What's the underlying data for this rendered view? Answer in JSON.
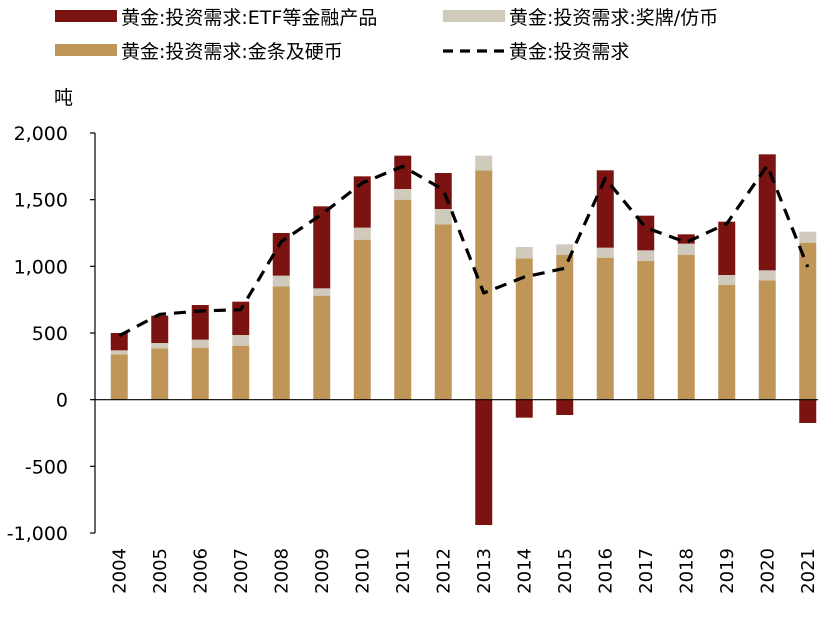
{
  "chart_data": {
    "type": "bar",
    "unit": "吨",
    "categories": [
      "2004",
      "2005",
      "2006",
      "2007",
      "2008",
      "2009",
      "2010",
      "2011",
      "2012",
      "2013",
      "2014",
      "2015",
      "2016",
      "2017",
      "2018",
      "2019",
      "2020",
      "2021"
    ],
    "ylim": [
      -1000,
      2000
    ],
    "yticks": [
      -1000,
      -500,
      0,
      500,
      1000,
      1500,
      2000
    ],
    "ytick_labels": [
      "-1,000",
      "-500",
      "0",
      "500",
      "1,000",
      "1,500",
      "2,000"
    ],
    "colors": {
      "etf": "#7B1410",
      "medals": "#CFCABC",
      "bars_coins": "#BF9558",
      "total_line": "#000000"
    },
    "series": [
      {
        "name": "黄金:投资需求:金条及硬币",
        "key": "bars_coins",
        "mark": "stacked-bar",
        "values": [
          340,
          385,
          390,
          405,
          850,
          780,
          1200,
          1500,
          1315,
          1720,
          1060,
          1085,
          1065,
          1040,
          1085,
          860,
          895,
          1175
        ]
      },
      {
        "name": "黄金:投资需求:奖牌/仿币",
        "key": "medals",
        "mark": "stacked-bar",
        "values": [
          30,
          40,
          60,
          80,
          80,
          55,
          90,
          80,
          115,
          110,
          85,
          80,
          75,
          80,
          85,
          75,
          75,
          85
        ]
      },
      {
        "name": "黄金:投资需求:ETF等金融产品",
        "key": "etf",
        "mark": "stacked-bar",
        "values": [
          130,
          205,
          260,
          250,
          320,
          615,
          385,
          250,
          270,
          -940,
          -135,
          -115,
          580,
          260,
          70,
          400,
          870,
          -175
        ]
      },
      {
        "name": "黄金:投资需求",
        "key": "total",
        "mark": "line",
        "values": [
          480,
          640,
          665,
          675,
          1185,
          1390,
          1625,
          1750,
          1575,
          800,
          920,
          985,
          1660,
          1290,
          1180,
          1320,
          1755,
          995
        ]
      }
    ],
    "legend": [
      {
        "label": "黄金:投资需求:ETF等金融产品",
        "key": "etf",
        "kind": "patch"
      },
      {
        "label": "黄金:投资需求:奖牌/仿币",
        "key": "medals",
        "kind": "patch"
      },
      {
        "label": "黄金:投资需求:金条及硬币",
        "key": "bars_coins",
        "kind": "patch"
      },
      {
        "label": "黄金:投资需求",
        "key": "total",
        "kind": "dashed-line"
      }
    ],
    "legend_position": "top",
    "grid": false
  }
}
